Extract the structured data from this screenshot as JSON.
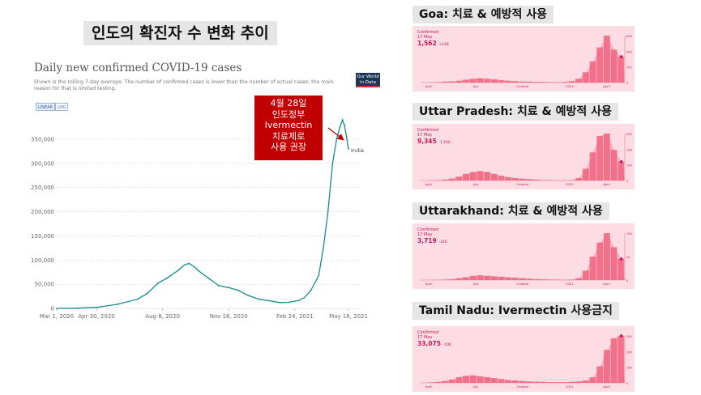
{
  "slide_title": "인도의 확진자 수 변화 추이",
  "owid": {
    "title": "Daily new confirmed COVID-19 cases",
    "subtitle": "Shown is the rolling 7-day average. The number of confirmed cases is lower than the number of actual cases; the main reason for that is limited testing.",
    "logo_text": "Our World in Data",
    "toggle_linear": "LINEAR",
    "toggle_log": "LOG"
  },
  "callout": {
    "lines": [
      "4월 28일",
      "인도정부",
      "Ivermectin",
      "치료제로",
      "사용 권장"
    ],
    "color": "#c00000"
  },
  "chart_data": {
    "type": "line",
    "title": "Daily new confirmed COVID-19 cases",
    "series": [
      {
        "name": "India",
        "color": "#1a8a8a",
        "x": [
          "2020-03-01",
          "2020-04-01",
          "2020-05-01",
          "2020-06-01",
          "2020-07-01",
          "2020-07-15",
          "2020-08-01",
          "2020-08-15",
          "2020-09-01",
          "2020-09-10",
          "2020-09-17",
          "2020-09-25",
          "2020-10-01",
          "2020-10-15",
          "2020-11-01",
          "2020-11-16",
          "2020-12-01",
          "2020-12-15",
          "2021-01-01",
          "2021-01-15",
          "2021-02-01",
          "2021-02-15",
          "2021-03-01",
          "2021-03-10",
          "2021-03-20",
          "2021-04-01",
          "2021-04-08",
          "2021-04-15",
          "2021-04-22",
          "2021-04-28",
          "2021-05-03",
          "2021-05-07",
          "2021-05-10",
          "2021-05-13",
          "2021-05-16"
        ],
        "values": [
          0,
          500,
          2200,
          8500,
          19000,
          30000,
          52000,
          63000,
          79000,
          90000,
          93000,
          86000,
          78000,
          64000,
          47000,
          43000,
          37000,
          27000,
          19000,
          16000,
          12000,
          12500,
          16000,
          22000,
          37000,
          68000,
          125000,
          200000,
          300000,
          350000,
          375000,
          390000,
          378000,
          355000,
          330000
        ]
      }
    ],
    "xticks": [
      {
        "value": "2020-03-01",
        "label": "Mar 1, 2020"
      },
      {
        "value": "2020-04-30",
        "label": "Apr 30, 2020"
      },
      {
        "value": "2020-08-08",
        "label": "Aug 8, 2020"
      },
      {
        "value": "2020-11-16",
        "label": "Nov 16, 2020"
      },
      {
        "value": "2021-02-24",
        "label": "Feb 24, 2021"
      },
      {
        "value": "2021-05-16",
        "label": "May 16, 2021"
      }
    ],
    "yticks": [
      0,
      50000,
      100000,
      150000,
      200000,
      250000,
      300000,
      350000
    ],
    "ytick_labels": [
      "0",
      "50,000",
      "100,000",
      "150,000",
      "200,000",
      "250,000",
      "300,000",
      "350,000"
    ],
    "ylim": [
      0,
      400000
    ],
    "xlim": [
      "2020-03-01",
      "2021-05-16"
    ],
    "grid": "horizontal dotted",
    "line_label": "India"
  },
  "panels": [
    {
      "label": "Goa: 치료 & 예방적 사용",
      "confirmed": "Confirmed",
      "date": "17 May",
      "number": "1,562",
      "change": "+248",
      "ticks": [
        "April",
        "July",
        "October",
        "2021",
        "April"
      ],
      "yticks": [
        "600",
        "400",
        "200",
        "0"
      ],
      "values": [
        0,
        0.5,
        1,
        2,
        2.5,
        4,
        6,
        8,
        9,
        8,
        7,
        5,
        4,
        3,
        2,
        2,
        1.5,
        1.5,
        1,
        1,
        1.5,
        3,
        8,
        22,
        45,
        75,
        100,
        70,
        55
      ]
    },
    {
      "label": "Uttar Pradesh: 치료 & 예방적 사용",
      "confirmed": "Confirmed",
      "date": "17 May",
      "number": "9,345",
      "change": "-1,166",
      "ticks": [
        "April",
        "July",
        "October",
        "2021",
        "April"
      ],
      "yticks": [
        "30K",
        "20K",
        "10K",
        "0"
      ],
      "values": [
        0,
        0.5,
        1,
        2,
        4,
        8,
        14,
        18,
        20,
        18,
        14,
        10,
        7,
        5,
        4,
        3,
        2,
        1,
        1,
        0.5,
        0.5,
        1,
        5,
        25,
        60,
        95,
        100,
        65,
        40
      ]
    },
    {
      "label": "Uttarakhand: 치료 & 예방적 사용",
      "confirmed": "Confirmed",
      "date": "17 May",
      "number": "3,719",
      "change": "-326",
      "ticks": [
        "April",
        "July",
        "October",
        "2021",
        "April"
      ],
      "yticks": [
        "10K",
        "5K",
        "0"
      ],
      "values": [
        0,
        0.3,
        0.5,
        1,
        2,
        4,
        6,
        9,
        10,
        9,
        8,
        7,
        6,
        5,
        4,
        3,
        2,
        1.5,
        1,
        1,
        0.5,
        1,
        4,
        20,
        50,
        80,
        100,
        70,
        45
      ]
    },
    {
      "label": "Tamil Nadu: Ivermectin 사용금지",
      "confirmed": "Confirmed",
      "date": "17 May",
      "number": "33,075",
      "change": "-106",
      "ticks": [
        "April",
        "July",
        "October",
        "2021",
        "April"
      ],
      "yticks": [
        "30K",
        "20K",
        "10K",
        "0"
      ],
      "values": [
        0,
        1,
        2,
        4,
        7,
        12,
        15,
        16,
        14,
        12,
        10,
        8,
        6,
        5,
        4,
        3,
        2.5,
        2,
        1.5,
        1.5,
        1.5,
        2,
        3,
        5,
        12,
        35,
        70,
        95,
        100
      ]
    }
  ],
  "colors": {
    "panel_bg": "#fddde3",
    "panel_bar": "#f06580",
    "panel_text": "#c2185b",
    "line": "#1a8a8a"
  }
}
